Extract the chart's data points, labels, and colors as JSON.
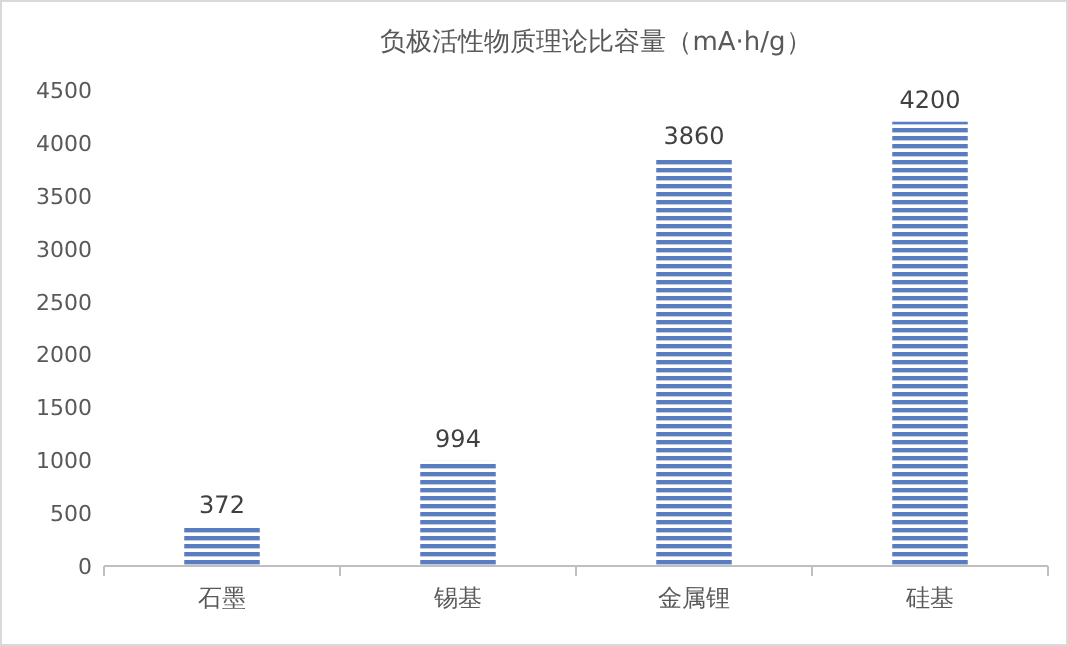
{
  "chart_data": {
    "type": "bar",
    "title": "负极活性物质理论比容量（mA·h/g）",
    "categories": [
      "石墨",
      "锡基",
      "金属锂",
      "硅基"
    ],
    "values": [
      372,
      994,
      3860,
      4200
    ],
    "color": "#5a7dbf",
    "ylim": [
      0,
      4500
    ],
    "yticks": [
      0,
      500,
      1000,
      1500,
      2000,
      2500,
      3000,
      3500,
      4000,
      4500
    ],
    "data_labels": true,
    "grid": false
  }
}
